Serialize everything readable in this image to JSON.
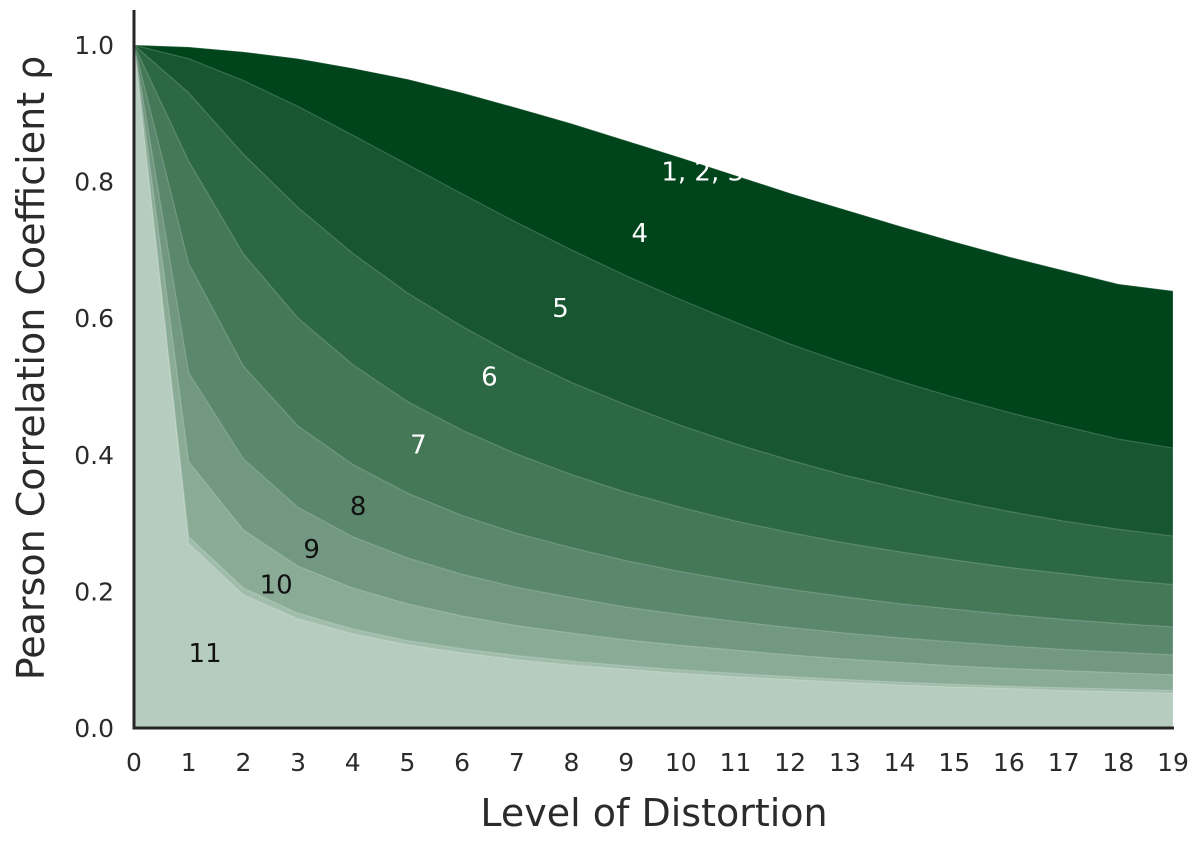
{
  "chart_data": {
    "type": "area",
    "title": "",
    "xlabel": "Level of Distortion",
    "ylabel": "Pearson Correlation Coefficient ρ",
    "xlim": [
      0,
      19
    ],
    "ylim": [
      0,
      1.05
    ],
    "x": [
      0,
      1,
      2,
      3,
      4,
      5,
      6,
      7,
      8,
      9,
      10,
      11,
      12,
      13,
      14,
      15,
      16,
      17,
      18,
      19
    ],
    "xticks": [
      "0",
      "1",
      "2",
      "3",
      "4",
      "5",
      "6",
      "7",
      "8",
      "9",
      "10",
      "11",
      "12",
      "13",
      "14",
      "15",
      "16",
      "17",
      "18",
      "19"
    ],
    "yticks": [
      "0.0",
      "0.2",
      "0.4",
      "0.6",
      "0.8",
      "1.0"
    ],
    "grid": false,
    "legend": "none",
    "series": [
      {
        "name": "1, 2, 3",
        "color": "#00441b",
        "label_color": "#ffffff",
        "values": [
          1.0,
          0.997,
          0.99,
          0.98,
          0.966,
          0.95,
          0.93,
          0.908,
          0.885,
          0.86,
          0.835,
          0.809,
          0.783,
          0.759,
          0.735,
          0.712,
          0.69,
          0.67,
          0.65,
          0.64
        ]
      },
      {
        "name": "4",
        "color": "#185631",
        "label_color": "#ffffff",
        "values": [
          1.0,
          0.98,
          0.948,
          0.91,
          0.868,
          0.825,
          0.782,
          0.74,
          0.7,
          0.662,
          0.627,
          0.594,
          0.562,
          0.534,
          0.508,
          0.484,
          0.462,
          0.442,
          0.423,
          0.41
        ]
      },
      {
        "name": "5",
        "color": "#2c6843",
        "label_color": "#ffffff",
        "values": [
          1.0,
          0.93,
          0.84,
          0.762,
          0.695,
          0.637,
          0.588,
          0.544,
          0.506,
          0.473,
          0.443,
          0.416,
          0.392,
          0.37,
          0.351,
          0.333,
          0.317,
          0.303,
          0.291,
          0.281
        ]
      },
      {
        "name": "6",
        "color": "#447857",
        "label_color": "#ffffff",
        "values": [
          1.0,
          0.83,
          0.694,
          0.6,
          0.532,
          0.478,
          0.436,
          0.401,
          0.371,
          0.345,
          0.323,
          0.303,
          0.286,
          0.271,
          0.258,
          0.246,
          0.235,
          0.226,
          0.217,
          0.21
        ]
      },
      {
        "name": "7",
        "color": "#5b886c",
        "label_color": "#ffffff",
        "values": [
          1.0,
          0.68,
          0.53,
          0.442,
          0.386,
          0.344,
          0.311,
          0.285,
          0.264,
          0.245,
          0.229,
          0.215,
          0.203,
          0.192,
          0.182,
          0.174,
          0.166,
          0.159,
          0.153,
          0.148
        ]
      },
      {
        "name": "8",
        "color": "#729881",
        "label_color": "#111111",
        "values": [
          1.0,
          0.52,
          0.394,
          0.323,
          0.28,
          0.249,
          0.225,
          0.206,
          0.191,
          0.177,
          0.166,
          0.156,
          0.147,
          0.139,
          0.132,
          0.126,
          0.12,
          0.115,
          0.111,
          0.107
        ]
      },
      {
        "name": "9",
        "color": "#8aac97",
        "label_color": "#111111",
        "values": [
          1.0,
          0.39,
          0.29,
          0.237,
          0.205,
          0.182,
          0.164,
          0.15,
          0.139,
          0.129,
          0.121,
          0.114,
          0.107,
          0.101,
          0.096,
          0.091,
          0.087,
          0.084,
          0.081,
          0.078
        ]
      },
      {
        "name": "10",
        "color": "#a0bcaa",
        "label_color": "#111111",
        "values": [
          1.0,
          0.28,
          0.205,
          0.168,
          0.145,
          0.128,
          0.116,
          0.106,
          0.098,
          0.091,
          0.085,
          0.08,
          0.075,
          0.071,
          0.067,
          0.064,
          0.061,
          0.059,
          0.057,
          0.055
        ]
      },
      {
        "name": "11",
        "color": "#b6ccbe",
        "label_color": "#111111",
        "values": [
          1.0,
          0.27,
          0.195,
          0.16,
          0.138,
          0.122,
          0.11,
          0.1,
          0.092,
          0.086,
          0.08,
          0.075,
          0.071,
          0.067,
          0.063,
          0.06,
          0.058,
          0.055,
          0.053,
          0.051
        ]
      }
    ],
    "annotations": [
      {
        "text": "1, 2, 3",
        "series": "1, 2, 3",
        "x": 10.4,
        "y": 0.815,
        "color": "#ffffff"
      },
      {
        "text": "4",
        "series": "4",
        "x": 9.25,
        "y": 0.725,
        "color": "#ffffff"
      },
      {
        "text": "5",
        "series": "5",
        "x": 7.8,
        "y": 0.615,
        "color": "#ffffff"
      },
      {
        "text": "6",
        "series": "6",
        "x": 6.5,
        "y": 0.515,
        "color": "#ffffff"
      },
      {
        "text": "7",
        "series": "7",
        "x": 5.2,
        "y": 0.415,
        "color": "#ffffff"
      },
      {
        "text": "8",
        "series": "8",
        "x": 4.1,
        "y": 0.325,
        "color": "#111111"
      },
      {
        "text": "9",
        "series": "9",
        "x": 3.25,
        "y": 0.262,
        "color": "#111111"
      },
      {
        "text": "10",
        "series": "10",
        "x": 2.6,
        "y": 0.21,
        "color": "#111111"
      },
      {
        "text": "11",
        "series": "11",
        "x": 1.3,
        "y": 0.11,
        "color": "#111111"
      }
    ]
  }
}
